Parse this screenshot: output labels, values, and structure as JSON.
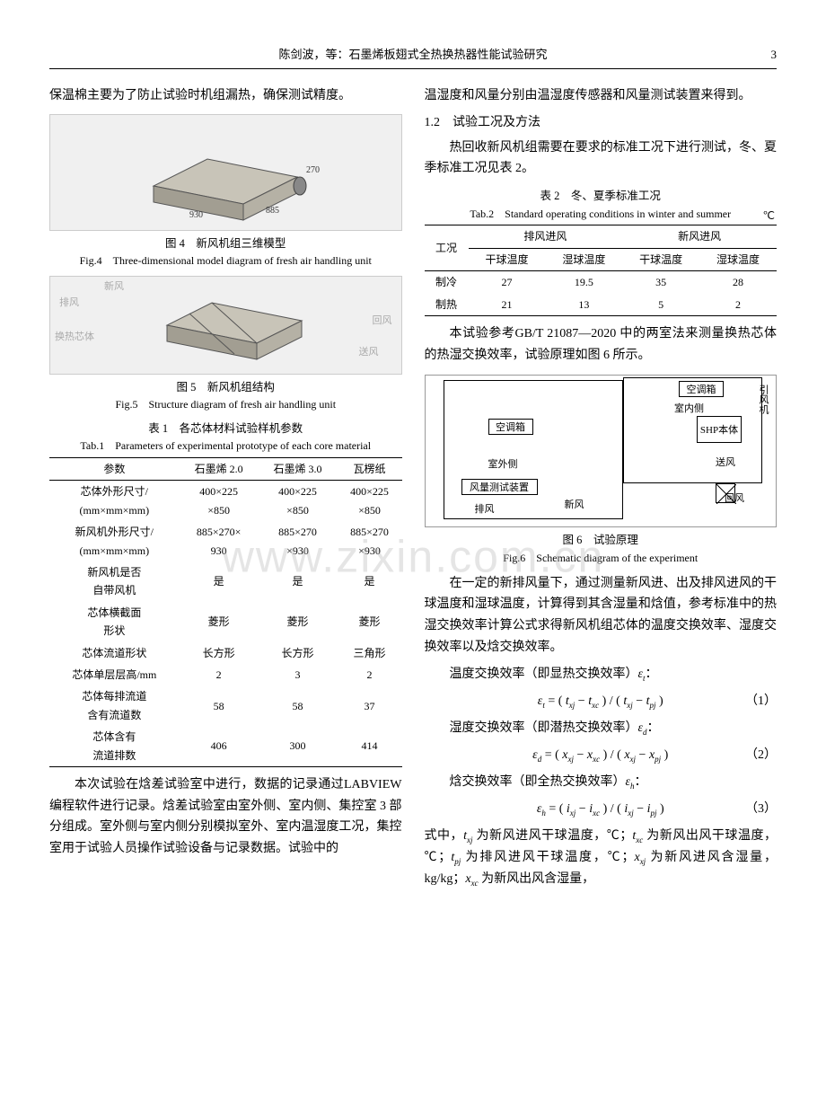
{
  "header": {
    "text": "陈剑波，等：石墨烯板翅式全热换热器性能试验研究",
    "page": "3"
  },
  "left": {
    "p1": "保温棉主要为了防止试验时机组漏热，确保测试精度。",
    "fig4": {
      "cn": "图 4　新风机组三维模型",
      "en": "Fig.4　Three-dimensional model diagram of fresh air handling unit"
    },
    "fig5": {
      "cn": "图 5　新风机组结构",
      "en": "Fig.5　Structure diagram of fresh air handling unit",
      "labels": {
        "xf": "新风",
        "pf": "排风",
        "hrxt": "换热芯体",
        "hf": "回风",
        "sf": "送风"
      }
    },
    "tab1": {
      "cn": "表 1　各芯体材料试验样机参数",
      "en": "Tab.1　Parameters of experimental prototype of each core material",
      "cols": [
        "参数",
        "石墨烯 2.0",
        "石墨烯 3.0",
        "瓦楞纸"
      ],
      "rows": [
        [
          "芯体外形尺寸/\n(mm×mm×mm)",
          "400×225\n×850",
          "400×225\n×850",
          "400×225\n×850"
        ],
        [
          "新风机外形尺寸/\n(mm×mm×mm)",
          "885×270×\n930",
          "885×270\n×930",
          "885×270\n×930"
        ],
        [
          "新风机是否\n自带风机",
          "是",
          "是",
          "是"
        ],
        [
          "芯体横截面\n形状",
          "菱形",
          "菱形",
          "菱形"
        ],
        [
          "芯体流道形状",
          "长方形",
          "长方形",
          "三角形"
        ],
        [
          "芯体单层层高/mm",
          "2",
          "3",
          "2"
        ],
        [
          "芯体每排流道\n含有流道数",
          "58",
          "58",
          "37"
        ],
        [
          "芯体含有\n流道排数",
          "406",
          "300",
          "414"
        ]
      ]
    },
    "p2": "本次试验在焓差试验室中进行，数据的记录通过LABVIEW 编程软件进行记录。焓差试验室由室外侧、室内侧、集控室 3 部分组成。室外侧与室内侧分别模拟室外、室内温湿度工况，集控室用于试验人员操作试验设备与记录数据。试验中的"
  },
  "right": {
    "p1": "温湿度和风量分别由温湿度传感器和风量测试装置来得到。",
    "sec12": "1.2　试验工况及方法",
    "p2": "热回收新风机组需要在要求的标准工况下进行测试，冬、夏季标准工况见表 2。",
    "tab2": {
      "cn": "表 2　冬、夏季标准工况",
      "en": "Tab.2　Standard operating conditions in winter and summer",
      "unit": "℃",
      "h1": [
        "工况",
        "排风进风",
        "新风进风"
      ],
      "h2": [
        "干球温度",
        "湿球温度",
        "干球温度",
        "湿球温度"
      ],
      "rows": [
        [
          "制冷",
          "27",
          "19.5",
          "35",
          "28"
        ],
        [
          "制热",
          "21",
          "13",
          "5",
          "2"
        ]
      ]
    },
    "p3": "本试验参考GB/T 21087—2020 中的两室法来测量换热芯体的热湿交换效率，试验原理如图 6 所示。",
    "fig6": {
      "cn": "图 6　试验原理",
      "en": "Fig.6　Schematic diagram of the experiment",
      "labels": {
        "ktx1": "空调箱",
        "ktx2": "空调箱",
        "snc": "室内侧",
        "swc": "室外侧",
        "yfj": "引风机",
        "bt": "SHP本体",
        "sf": "送风",
        "fl": "风量测试装置",
        "pf": "排风",
        "xf": "新风",
        "hf": "回风"
      }
    },
    "p4": "在一定的新排风量下，通过测量新风进、出及排风进风的干球温度和湿球温度，计算得到其含湿量和焓值，参考标准中的热湿交换效率计算公式求得新风机组芯体的温度交换效率、湿度交换效率以及焓交换效率。",
    "line_t": "温度交换效率（即显热交换效率）εt：",
    "eq1": {
      "body": "εt = ( txj − txc ) / ( txj − tpj )",
      "num": "（1）"
    },
    "line_d": "湿度交换效率（即潜热交换效率）εd：",
    "eq2": {
      "body": "εd = ( xxj − xxc ) / ( xxj − xpj )",
      "num": "（2）"
    },
    "line_h": "焓交换效率（即全热交换效率）εh：",
    "eq3": {
      "body": "εh = ( ixj − ixc ) / ( ixj − ipj )",
      "num": "（3）"
    },
    "p5": "式中，txj 为新风进风干球温度，℃；txc 为新风出风干球温度，℃；tpj 为排风进风干球温度，℃；xxj 为新风进风含湿量，kg/kg；xxc 为新风出风含湿量，"
  },
  "watermark": "www.zixin.com.cn"
}
